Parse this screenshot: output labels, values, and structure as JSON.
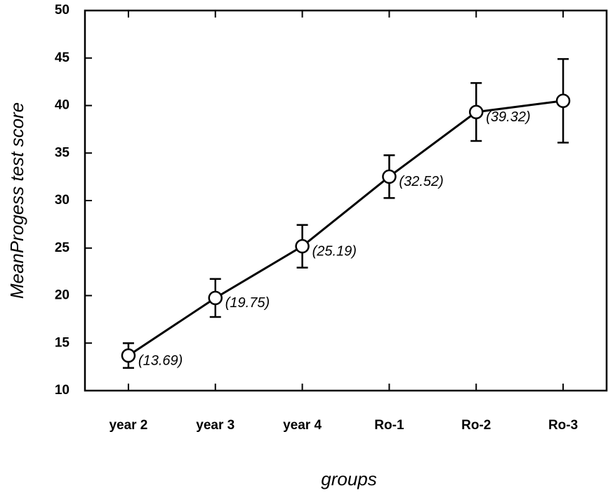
{
  "chart_data": {
    "type": "line",
    "xlabel": "groups",
    "ylabel": "MeanProgess test score",
    "categories": [
      "year 2",
      "year 3",
      "year 4",
      "Ro-1",
      "Ro-2",
      "Ro-3"
    ],
    "values": [
      13.69,
      19.75,
      25.19,
      32.52,
      39.32,
      40.5
    ],
    "value_labels": [
      "(13.69)",
      "(19.75)",
      "(25.19)",
      "(32.52)",
      "(39.32)",
      null
    ],
    "errors": [
      1.3,
      2.0,
      2.25,
      2.25,
      3.05,
      4.4
    ],
    "color": "#000000",
    "ylim": [
      10,
      50
    ],
    "yticks": [
      10,
      15,
      20,
      25,
      30,
      35,
      40,
      45,
      50
    ]
  }
}
